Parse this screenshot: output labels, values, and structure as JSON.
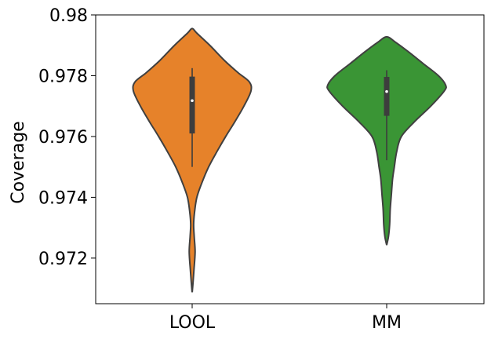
{
  "chart_data": {
    "type": "violin",
    "title": "",
    "xlabel": "",
    "ylabel": "Coverage",
    "ylim": [
      0.9705,
      0.98
    ],
    "yticks": [
      "0.972",
      "0.974",
      "0.976",
      "0.978",
      "0.98"
    ],
    "ytick_values": [
      0.972,
      0.974,
      0.976,
      0.978,
      0.98
    ],
    "categories": [
      "LOOL",
      "MM"
    ],
    "series": [
      {
        "category": "LOOL",
        "color": "#e6822a",
        "min": 0.9709,
        "max": 0.97955,
        "whisker_low": 0.975,
        "whisker_high": 0.97825,
        "q1": 0.9761,
        "q3": 0.97797,
        "median": 0.97718,
        "density": [
          [
            0.9709,
            0.002
          ],
          [
            0.9712,
            0.015
          ],
          [
            0.9716,
            0.03
          ],
          [
            0.9722,
            0.05
          ],
          [
            0.9727,
            0.035
          ],
          [
            0.9731,
            0.025
          ],
          [
            0.9735,
            0.04
          ],
          [
            0.974,
            0.08
          ],
          [
            0.9745,
            0.17
          ],
          [
            0.975,
            0.28
          ],
          [
            0.9755,
            0.42
          ],
          [
            0.976,
            0.57
          ],
          [
            0.9765,
            0.73
          ],
          [
            0.977,
            0.88
          ],
          [
            0.9775,
            1.0
          ],
          [
            0.9778,
            0.97
          ],
          [
            0.9781,
            0.78
          ],
          [
            0.9785,
            0.55
          ],
          [
            0.979,
            0.3
          ],
          [
            0.9794,
            0.08
          ],
          [
            0.97955,
            0.0
          ]
        ]
      },
      {
        "category": "MM",
        "color": "#3a9535",
        "min": 0.97243,
        "max": 0.97928,
        "whisker_low": 0.97522,
        "whisker_high": 0.97818,
        "q1": 0.97668,
        "q3": 0.97796,
        "median": 0.97748,
        "density": [
          [
            0.97243,
            0.0
          ],
          [
            0.9727,
            0.03
          ],
          [
            0.9731,
            0.05
          ],
          [
            0.9736,
            0.06
          ],
          [
            0.9741,
            0.08
          ],
          [
            0.9746,
            0.1
          ],
          [
            0.975,
            0.13
          ],
          [
            0.9755,
            0.17
          ],
          [
            0.976,
            0.25
          ],
          [
            0.9765,
            0.48
          ],
          [
            0.977,
            0.75
          ],
          [
            0.9775,
            0.98
          ],
          [
            0.9777,
            1.0
          ],
          [
            0.978,
            0.88
          ],
          [
            0.9784,
            0.62
          ],
          [
            0.9788,
            0.36
          ],
          [
            0.9791,
            0.15
          ],
          [
            0.97928,
            0.0
          ]
        ]
      }
    ],
    "grid": false,
    "legend": "none"
  }
}
